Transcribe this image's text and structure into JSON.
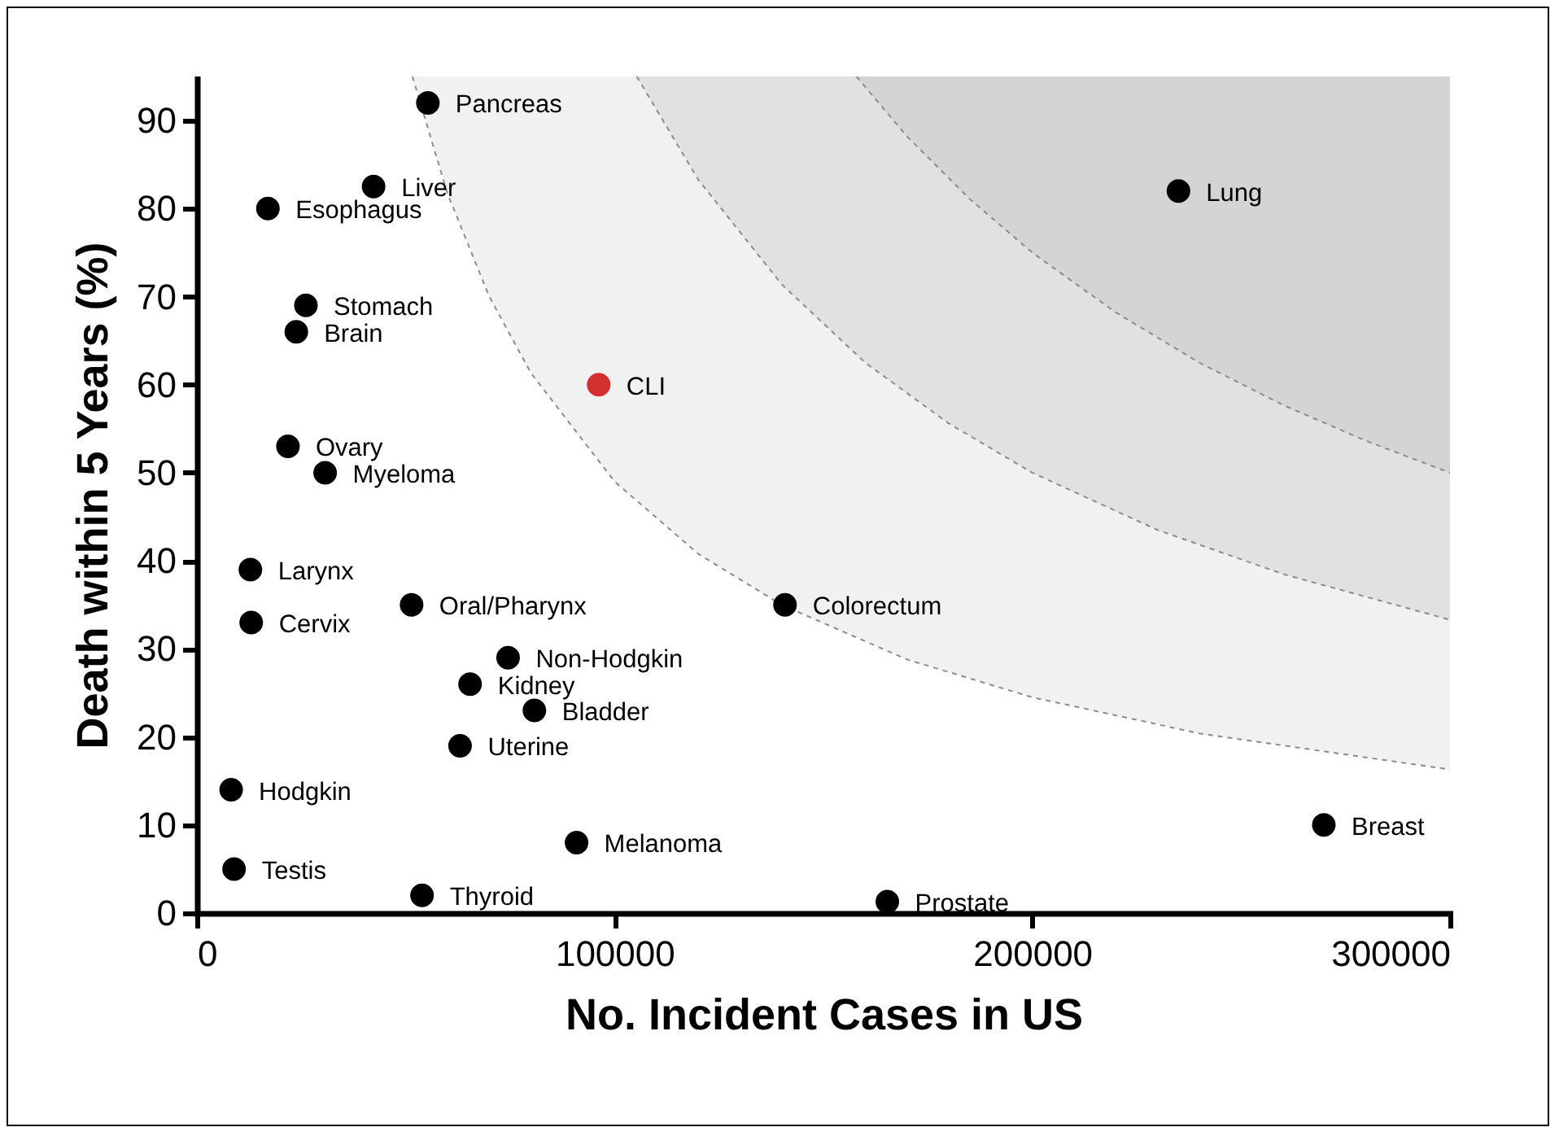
{
  "chart_data": {
    "type": "scatter",
    "xlabel": "No. Incident Cases in US",
    "ylabel": "Death within 5 Years (%)",
    "xlim": [
      0,
      300000
    ],
    "ylim": [
      0,
      95
    ],
    "xticks": [
      0,
      100000,
      200000,
      300000
    ],
    "yticks": [
      0,
      10,
      20,
      30,
      40,
      50,
      60,
      70,
      80,
      90
    ],
    "grid": false,
    "marker": "circle",
    "series": [
      {
        "type": "line",
        "color": "#8c8c8c",
        "marker": "none",
        "line_style": "dashed",
        "x": [
          51600,
          60000,
          70000,
          80000,
          100000,
          120000,
          140000,
          170000,
          200000,
          240000,
          300000
        ],
        "values": [
          95,
          81.7,
          70,
          61.3,
          49,
          40.8,
          35,
          28.8,
          24.5,
          20.4,
          16.3
        ]
      },
      {
        "type": "line",
        "color": "#8c8c8c",
        "marker": "none",
        "line_style": "dashed",
        "x": [
          105300,
          120000,
          140000,
          160000,
          180000,
          200000,
          230000,
          260000,
          300000
        ],
        "values": [
          95,
          83.3,
          71.4,
          62.5,
          55.6,
          50,
          43.5,
          38.5,
          33.3
        ]
      },
      {
        "type": "line",
        "color": "#8c8c8c",
        "marker": "none",
        "line_style": "dashed",
        "x": [
          157900,
          170000,
          185000,
          200000,
          220000,
          240000,
          260000,
          280000,
          300000
        ],
        "values": [
          95,
          88.2,
          81.1,
          75,
          68.2,
          62.5,
          57.7,
          53.6,
          50
        ]
      },
      {
        "name": "Pancreas",
        "color": "#000000",
        "x": [
          55300
        ],
        "values": [
          92
        ]
      },
      {
        "name": "Liver",
        "color": "#000000",
        "x": [
          42300
        ],
        "values": [
          82.5
        ]
      },
      {
        "name": "Esophagus",
        "color": "#000000",
        "x": [
          17000
        ],
        "values": [
          80
        ]
      },
      {
        "name": "Lung",
        "color": "#000000",
        "x": [
          235000
        ],
        "values": [
          82
        ]
      },
      {
        "name": "Stomach",
        "color": "#000000",
        "x": [
          26100
        ],
        "values": [
          69
        ]
      },
      {
        "name": "Brain",
        "color": "#000000",
        "x": [
          23800
        ],
        "values": [
          66
        ]
      },
      {
        "name": "CLI",
        "color": "#d32f2f",
        "x": [
          96200
        ],
        "values": [
          60
        ]
      },
      {
        "name": "Ovary",
        "color": "#000000",
        "x": [
          21800
        ],
        "values": [
          53
        ]
      },
      {
        "name": "Myeloma",
        "color": "#000000",
        "x": [
          30700
        ],
        "values": [
          50
        ]
      },
      {
        "name": "Larynx",
        "color": "#000000",
        "x": [
          12800
        ],
        "values": [
          39
        ]
      },
      {
        "name": "Cervix",
        "color": "#000000",
        "x": [
          13000
        ],
        "values": [
          33
        ]
      },
      {
        "name": "Oral/Pharynx",
        "color": "#000000",
        "x": [
          51400
        ],
        "values": [
          35
        ]
      },
      {
        "name": "Colorectum",
        "color": "#000000",
        "x": [
          140800
        ],
        "values": [
          35
        ]
      },
      {
        "name": "Non-Hodgkin",
        "color": "#000000",
        "x": [
          74500
        ],
        "values": [
          29
        ]
      },
      {
        "name": "Kidney",
        "color": "#000000",
        "x": [
          65400
        ],
        "values": [
          26
        ]
      },
      {
        "name": "Bladder",
        "color": "#000000",
        "x": [
          80800
        ],
        "values": [
          23
        ]
      },
      {
        "name": "Uterine",
        "color": "#000000",
        "x": [
          63000
        ],
        "values": [
          19
        ]
      },
      {
        "name": "Hodgkin",
        "color": "#000000",
        "x": [
          8200
        ],
        "values": [
          14
        ]
      },
      {
        "name": "Breast",
        "color": "#000000",
        "x": [
          269800
        ],
        "values": [
          10
        ]
      },
      {
        "name": "Melanoma",
        "color": "#000000",
        "x": [
          90900
        ],
        "values": [
          8
        ]
      },
      {
        "name": "Testis",
        "color": "#000000",
        "x": [
          8900
        ],
        "values": [
          5
        ]
      },
      {
        "name": "Thyroid",
        "color": "#000000",
        "x": [
          53900
        ],
        "values": [
          2
        ]
      },
      {
        "name": "Prostate",
        "color": "#000000",
        "x": [
          165300
        ],
        "values": [
          1.3
        ]
      }
    ]
  }
}
